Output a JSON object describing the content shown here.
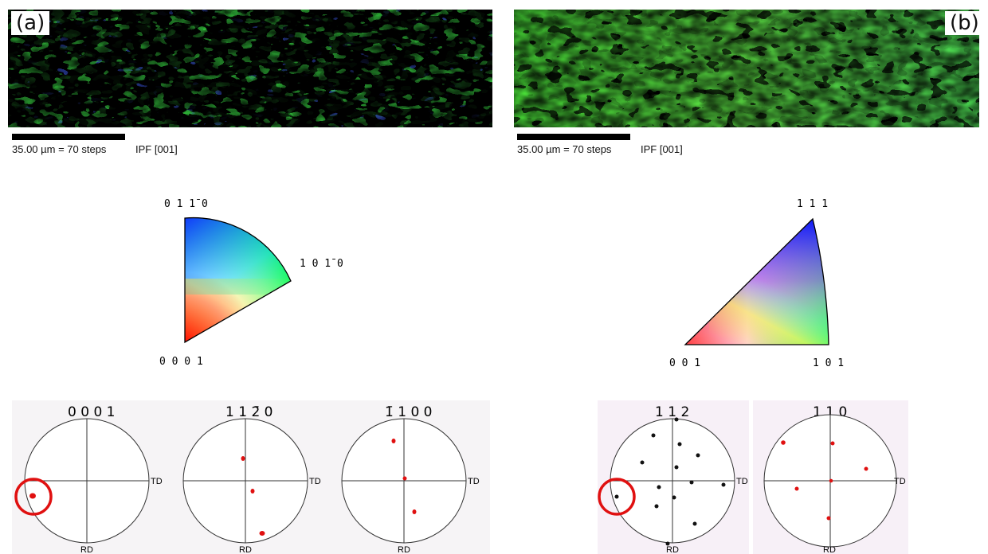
{
  "panel_a": {
    "label": "(a)",
    "scale_text": "35.00 µm = 70 steps",
    "ipf_text": "IPF [001]",
    "key": {
      "top": "0 1 1̄ 0",
      "right": "1 0 1̄ 0",
      "bottom": "0 0 0 1"
    },
    "pole_figures": [
      {
        "title": "0 0 0 1",
        "td": "TD",
        "rd": "RD"
      },
      {
        "title": "1 1 2̄ 0",
        "td": "TD",
        "rd": "RD"
      },
      {
        "title": "1̄ 1 0 0",
        "td": "TD",
        "rd": "RD"
      }
    ],
    "colors": {
      "phase1": "#3f5cf0",
      "phase2": "#3ef04a"
    }
  },
  "panel_b": {
    "label": "(b)",
    "scale_text": "35.00 µm = 70 steps",
    "ipf_text": "IPF [001]",
    "key": {
      "top": "1 1 1",
      "left": "0 0 1",
      "right": "1 0 1"
    },
    "pole_figures": [
      {
        "title": "1 1 2",
        "td": "TD",
        "rd": "RD"
      },
      {
        "title": "1 1 0",
        "td": "TD",
        "rd": "RD"
      }
    ],
    "colors": {
      "phase": "#5ef045"
    }
  },
  "highlight_color": "#e01010"
}
